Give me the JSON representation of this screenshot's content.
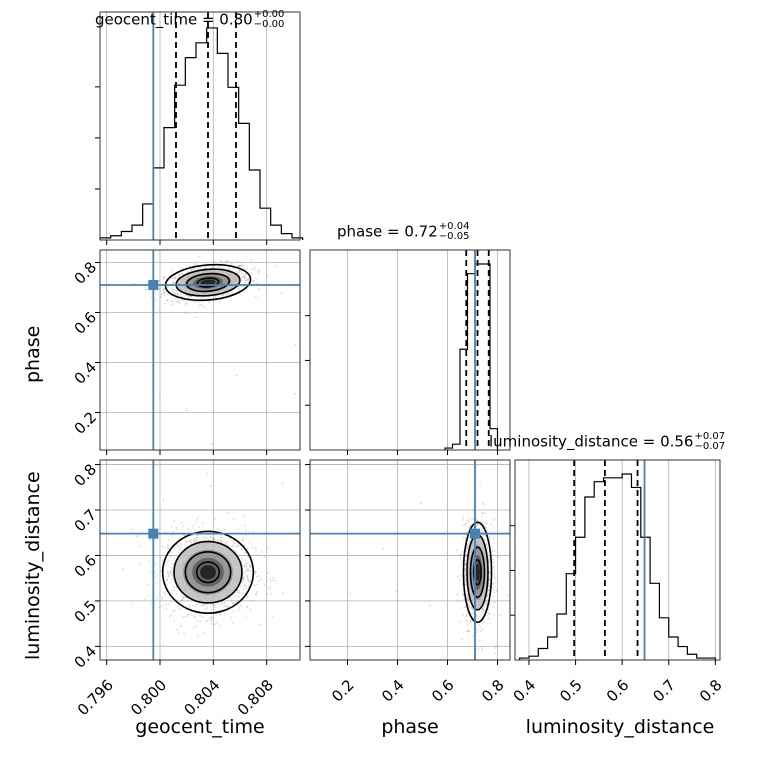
{
  "colors": {
    "truth": "#4682b4",
    "line": "#000000",
    "grid": "#b0b0b0",
    "scatter": "#999999"
  },
  "titles": {
    "geocent": {
      "name": "geocent_time",
      "value": "0.80",
      "plus": "+0.00",
      "minus": "−0.00"
    },
    "phase": {
      "name": "phase",
      "value": "0.72",
      "plus": "+0.04",
      "minus": "−0.05"
    },
    "lum": {
      "name": "luminosity_distance",
      "value": "0.56",
      "plus": "+0.07",
      "minus": "−0.07"
    }
  },
  "axis_labels": {
    "x1": "geocent_time",
    "x2": "phase",
    "x3": "luminosity_distance",
    "y_phase": "phase",
    "y_lum": "luminosity_distance"
  },
  "chart_data": {
    "type": "corner",
    "parameters": [
      "geocent_time",
      "phase",
      "luminosity_distance"
    ],
    "ranges": {
      "geocent_time": [
        0.7955,
        0.8105
      ],
      "phase": [
        0.05,
        0.85
      ],
      "luminosity_distance": [
        0.37,
        0.81
      ]
    },
    "ticks": {
      "geocent_time": [
        "0.796",
        "0.800",
        "0.804",
        "0.808"
      ],
      "phase": [
        "0.2",
        "0.4",
        "0.6",
        "0.8"
      ],
      "luminosity_distance": [
        "0.4",
        "0.5",
        "0.6",
        "0.7",
        "0.8"
      ]
    },
    "truths": {
      "geocent_time": 0.7995,
      "phase": 0.71,
      "luminosity_distance": 0.648
    },
    "quantiles": {
      "geocent_time": [
        0.8012,
        0.8036,
        0.8057
      ],
      "phase": [
        0.675,
        0.72,
        0.765
      ],
      "luminosity_distance": [
        0.497,
        0.563,
        0.633
      ]
    },
    "histograms": {
      "geocent_time": {
        "edges": [
          0.7955,
          0.7963,
          0.7971,
          0.7979,
          0.7987,
          0.7995,
          0.8003,
          0.8011,
          0.8019,
          0.8027,
          0.8035,
          0.8043,
          0.8051,
          0.8059,
          0.8067,
          0.8075,
          0.8083,
          0.8091,
          0.8099,
          0.8107
        ],
        "counts": [
          0.01,
          0.02,
          0.04,
          0.07,
          0.17,
          0.34,
          0.53,
          0.73,
          0.86,
          0.93,
          1.0,
          0.88,
          0.72,
          0.55,
          0.33,
          0.15,
          0.07,
          0.03,
          0.01
        ]
      },
      "phase": {
        "edges": [
          0.59,
          0.62,
          0.65,
          0.68,
          0.71,
          0.74,
          0.77,
          0.8
        ],
        "counts": [
          0.01,
          0.03,
          0.52,
          0.91,
          0.96,
          0.96,
          0.11
        ]
      },
      "luminosity_distance": {
        "edges": [
          0.38,
          0.4,
          0.42,
          0.44,
          0.46,
          0.48,
          0.5,
          0.52,
          0.54,
          0.56,
          0.58,
          0.6,
          0.62,
          0.64,
          0.66,
          0.68,
          0.7,
          0.72,
          0.74,
          0.76,
          0.78,
          0.8
        ],
        "counts": [
          0.01,
          0.02,
          0.06,
          0.12,
          0.24,
          0.45,
          0.64,
          0.85,
          0.93,
          0.95,
          0.95,
          0.97,
          0.9,
          0.64,
          0.4,
          0.22,
          0.12,
          0.07,
          0.03,
          0.01,
          0.01
        ]
      }
    },
    "posterior_centers": {
      "geocent_time": 0.8036,
      "phase": 0.72,
      "luminosity_distance": 0.563
    }
  }
}
